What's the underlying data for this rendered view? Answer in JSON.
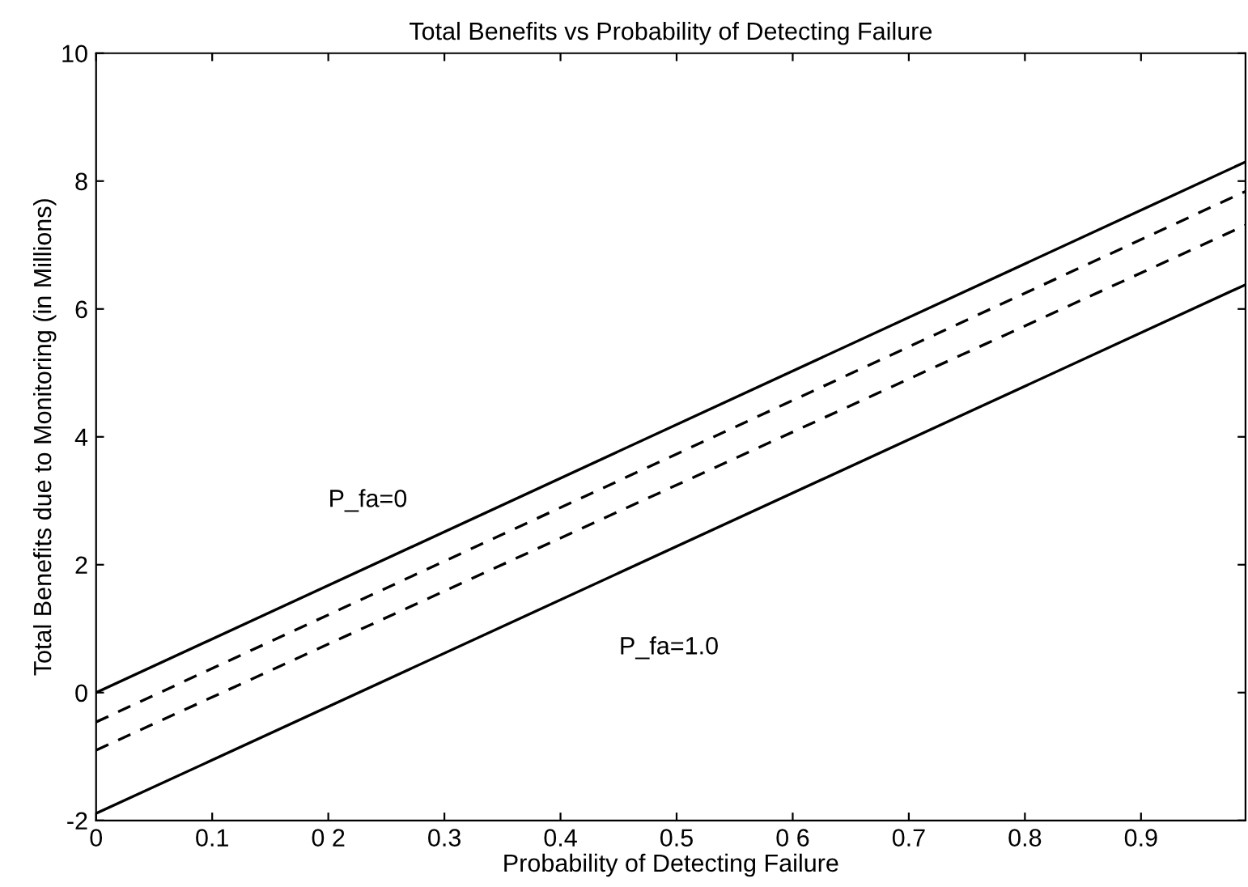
{
  "chart_data": {
    "type": "line",
    "title": "Total Benefits vs Probability of Detecting Failure",
    "xlabel": "Probability of Detecting Failure",
    "ylabel": "Total Benefits due to Monitoring (in Millions)",
    "x": [
      0,
      0.99
    ],
    "series": [
      {
        "color": "#000000",
        "values": [
          0.0,
          8.3
        ],
        "line_style": "solid"
      },
      {
        "color": "#000000",
        "values": [
          -0.46,
          7.84
        ],
        "line_style": "dashed"
      },
      {
        "color": "#000000",
        "values": [
          -0.9,
          7.31
        ],
        "line_style": "dashed"
      },
      {
        "color": "#000000",
        "values": [
          -1.89,
          6.38
        ],
        "line_style": "solid"
      }
    ],
    "xlim": [
      0,
      0.99
    ],
    "ylim": [
      -2,
      10
    ],
    "xticks": [
      0,
      0.1,
      {
        "value": 0.2,
        "label": "0 2"
      },
      0.3,
      0.4,
      0.5,
      {
        "value": 0.6,
        "label": "0 6"
      },
      0.7,
      0.8,
      0.9
    ],
    "yticks": [
      -2,
      0,
      2,
      4,
      6,
      8,
      10
    ],
    "annotations": [
      "P_fa=0",
      "P_fa=1.0"
    ],
    "grid": false,
    "legend": false
  }
}
